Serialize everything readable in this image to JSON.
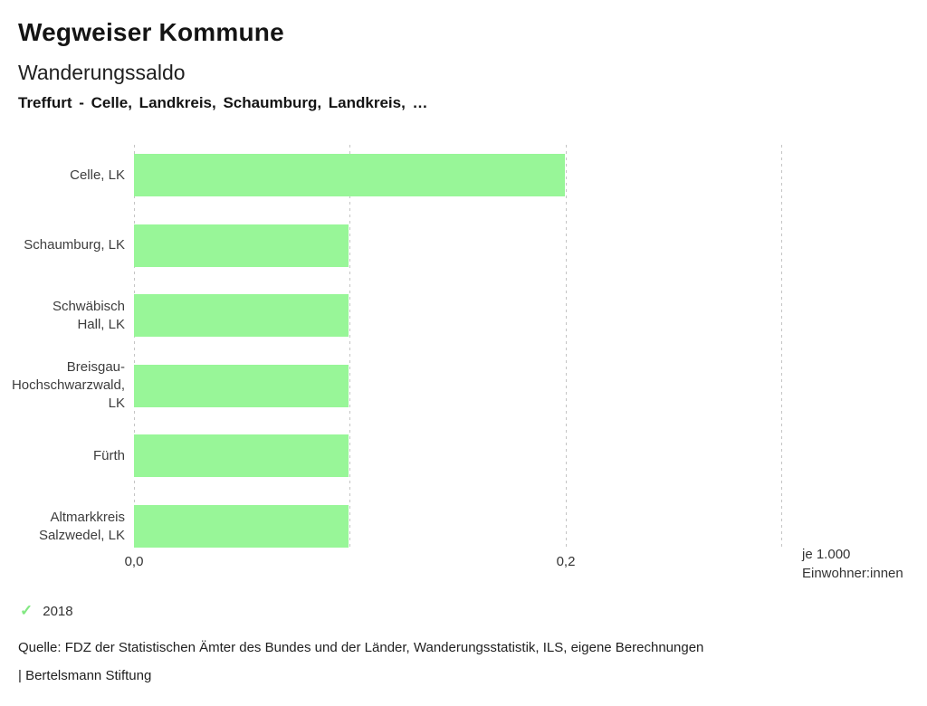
{
  "header": {
    "title": "Wegweiser Kommune",
    "subtitle": "Wanderungssaldo",
    "comparison": "Treffurt - Celle, Landkreis, Schaumburg, Landkreis, …"
  },
  "chart_data": {
    "type": "bar",
    "orientation": "horizontal",
    "title": "Wanderungssaldo",
    "categories": [
      "Celle, LK",
      "Schaumburg, LK",
      "Schwäbisch Hall, LK",
      "Breisgau-Hochschwarzwald, LK",
      "Fürth",
      "Altmarkkreis Salzwedel, LK"
    ],
    "category_label_lines": [
      [
        "Celle, LK"
      ],
      [
        "Schaumburg, LK"
      ],
      [
        "Schwäbisch",
        "Hall, LK"
      ],
      [
        "Breisgau-",
        "Hochschwarzwald,",
        "LK"
      ],
      [
        "Fürth"
      ],
      [
        "Altmarkkreis",
        "Salzwedel, LK"
      ]
    ],
    "series": [
      {
        "name": "2018",
        "values": [
          0.2,
          0.1,
          0.1,
          0.1,
          0.1,
          0.1
        ]
      }
    ],
    "xlabel": "je 1.000 Einwohner:innen",
    "unit_label_lines": [
      "je 1.000",
      "Einwohner:innen"
    ],
    "xlim": [
      0,
      0.3
    ],
    "xticks": [
      {
        "value": 0.0,
        "label": "0,0"
      },
      {
        "value": 0.2,
        "label": "0,2"
      }
    ],
    "gridlines": [
      0.0,
      0.1,
      0.2,
      0.3
    ],
    "grid": true,
    "legend_position": "bottom-left",
    "bar_color": "#98f698",
    "gridline_color": "#c4c4c4"
  },
  "legend": {
    "check_icon": "✓",
    "check_color": "#82e882",
    "year": "2018"
  },
  "footer": {
    "source": "Quelle: FDZ der Statistischen Ämter des Bundes und der Länder, Wanderungsstatistik, ILS, eigene Berechnungen",
    "attribution": "| Bertelsmann Stiftung"
  }
}
